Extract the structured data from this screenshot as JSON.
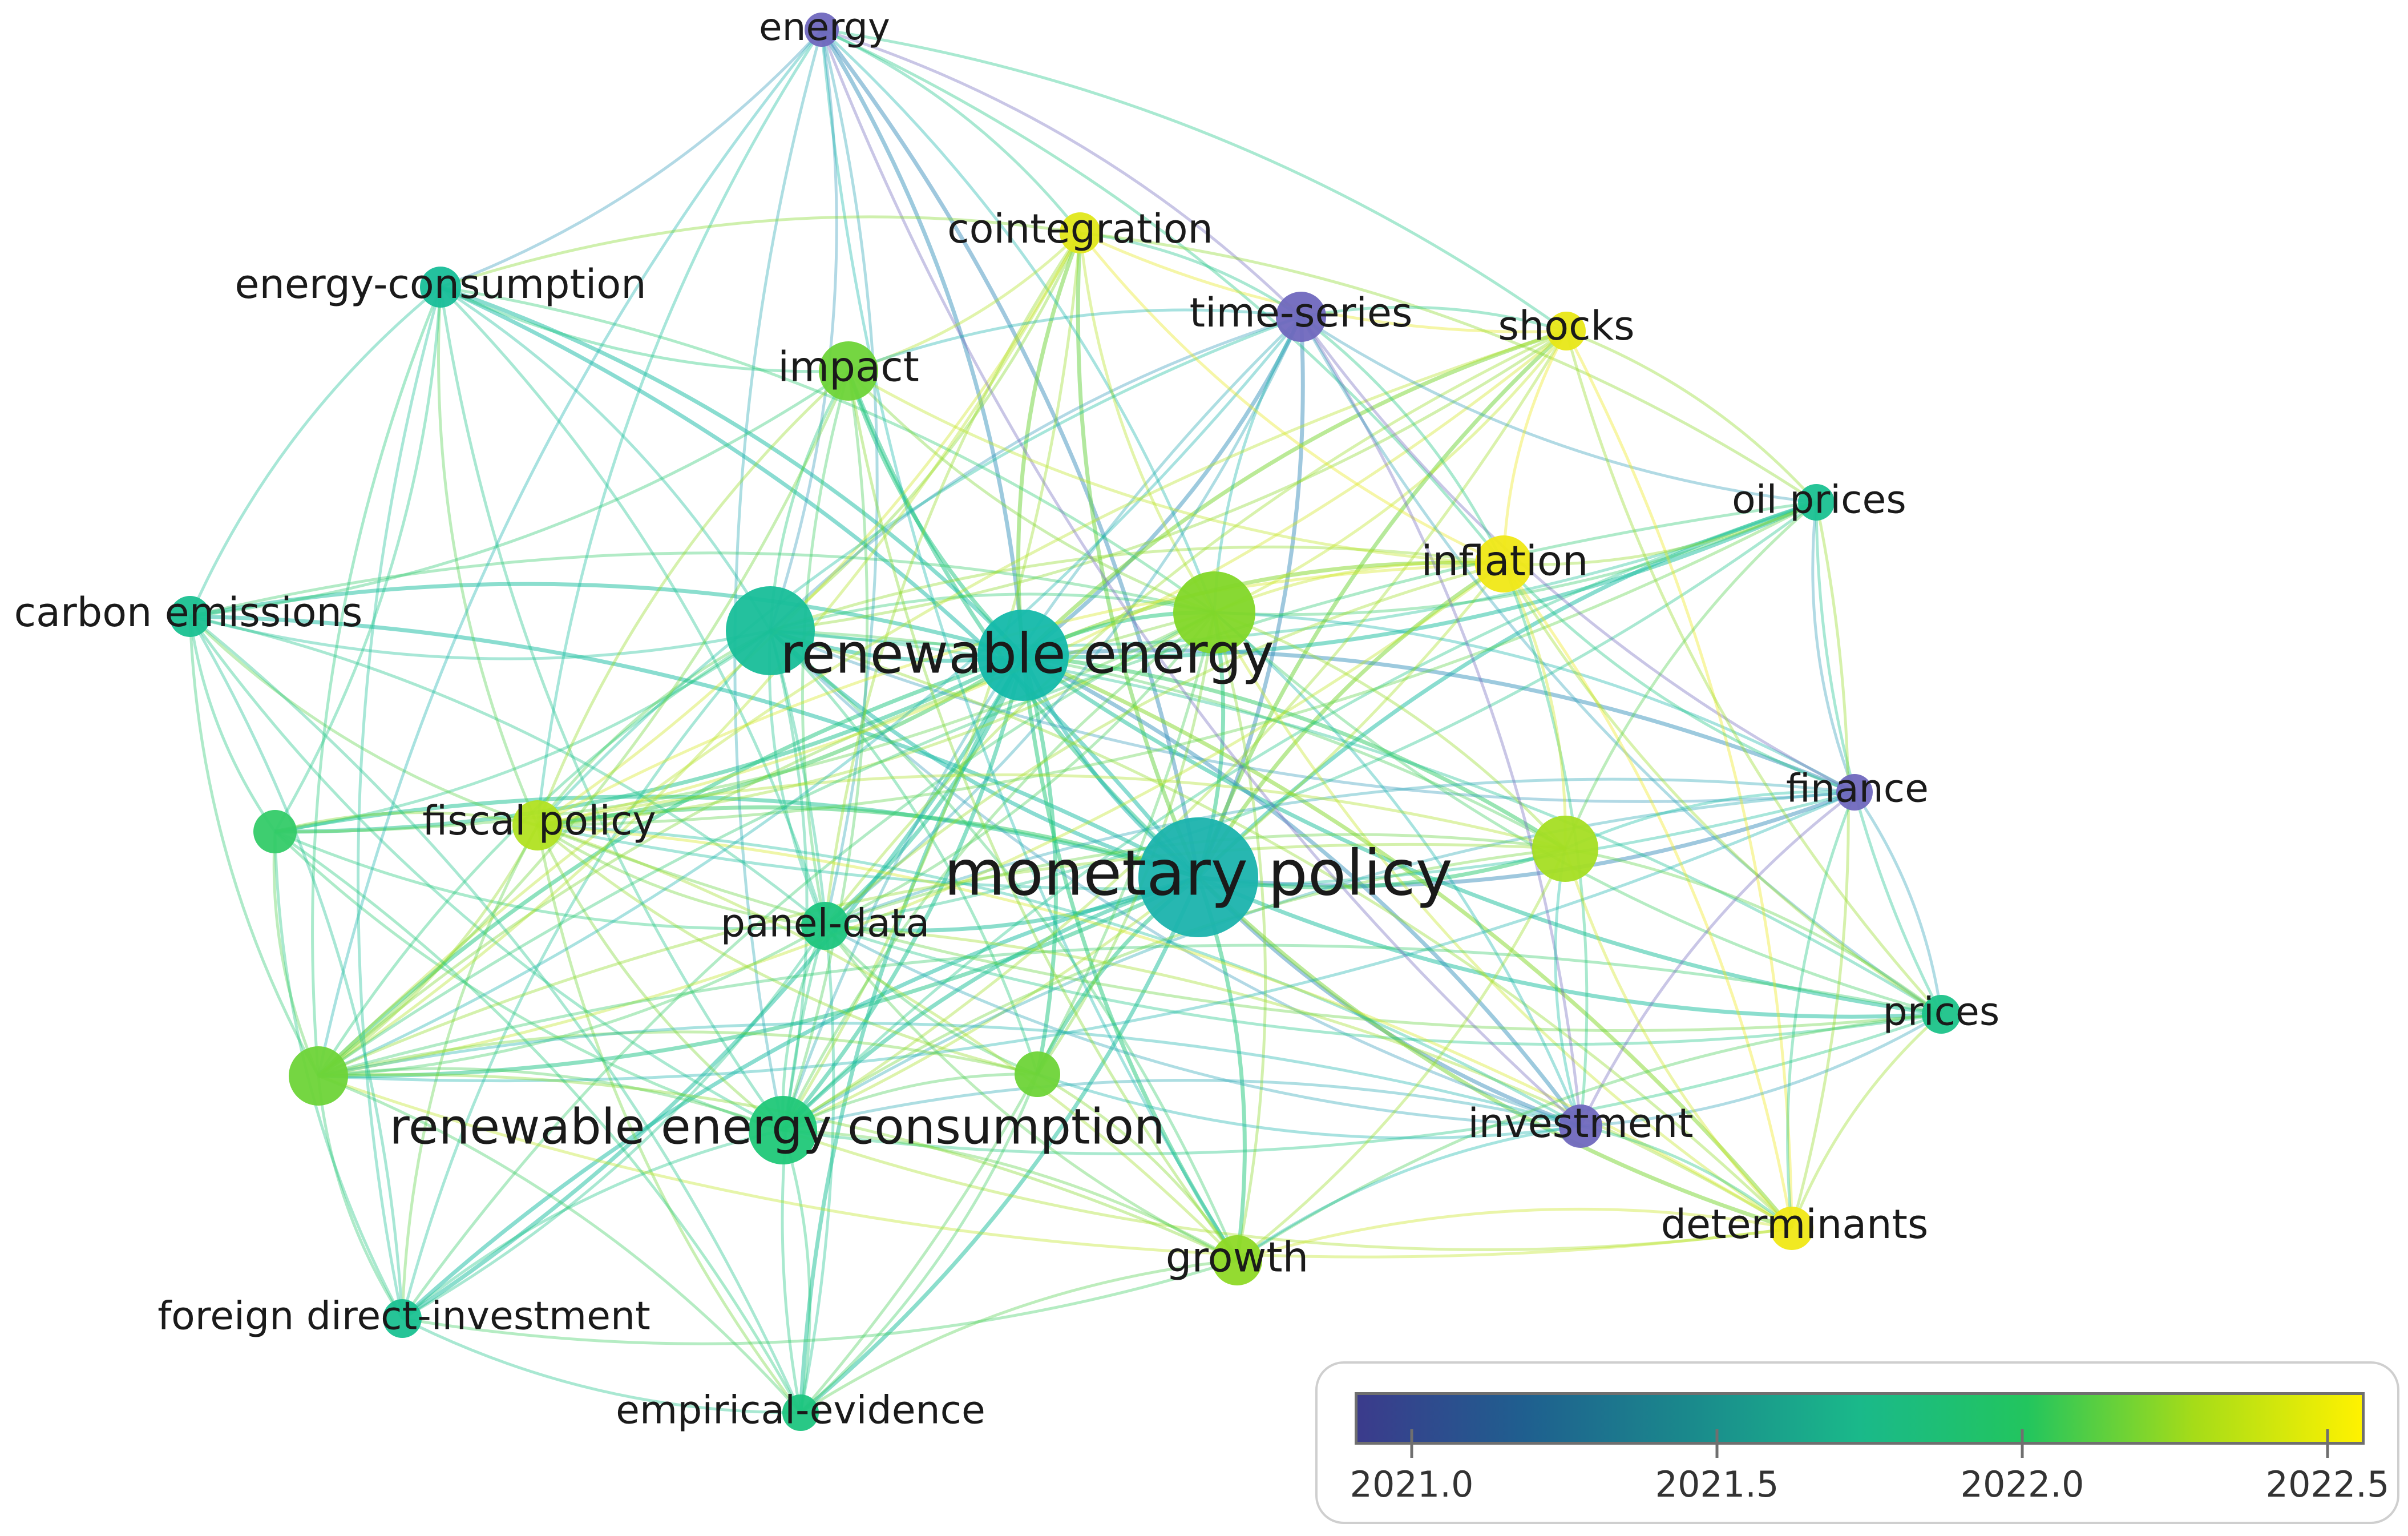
{
  "network": {
    "nodes": [
      {
        "id": "energy",
        "label": "energy",
        "year": 2021.0,
        "weight": 1
      },
      {
        "id": "cointegration",
        "label": "cointegration",
        "year": 2022.6,
        "weight": 1
      },
      {
        "id": "energy-consumption",
        "label": "energy-consumption",
        "year": 2021.7,
        "weight": 1
      },
      {
        "id": "time-series",
        "label": "time-series",
        "year": 2021.0,
        "weight": 1.1
      },
      {
        "id": "shocks",
        "label": "shocks",
        "year": 2022.65,
        "weight": 1
      },
      {
        "id": "impact",
        "label": "impact",
        "year": 2022.1,
        "weight": 1.4
      },
      {
        "id": "oil-prices",
        "label": "oil prices",
        "year": 2021.75,
        "weight": 0.9
      },
      {
        "id": "inflation",
        "label": "inflation",
        "year": 2022.7,
        "weight": 1.3
      },
      {
        "id": "carbon-emissions",
        "label": "carbon emissions",
        "year": 2021.75,
        "weight": 1
      },
      {
        "id": "economic-growth",
        "label": "",
        "year": 2021.7,
        "weight": 3.4
      },
      {
        "id": "renewable-energy",
        "label": "renewable energy",
        "year": 2021.6,
        "weight": 3.5
      },
      {
        "id": "unlabeled-green-top",
        "label": "",
        "year": 2022.15,
        "weight": 3.2
      },
      {
        "id": "finance",
        "label": "finance",
        "year": 2021.0,
        "weight": 1
      },
      {
        "id": "unlabeled-left",
        "label": "",
        "year": 2021.95,
        "weight": 1.2
      },
      {
        "id": "fiscal-policy",
        "label": "fiscal policy",
        "year": 2022.35,
        "weight": 1.3
      },
      {
        "id": "monetary-policy",
        "label": "monetary policy",
        "year": 2021.55,
        "weight": 5.5
      },
      {
        "id": "unlabeled-right",
        "label": "",
        "year": 2022.3,
        "weight": 2
      },
      {
        "id": "panel-data",
        "label": "panel-data",
        "year": 2021.85,
        "weight": 1.3
      },
      {
        "id": "prices",
        "label": "prices",
        "year": 2021.8,
        "weight": 1
      },
      {
        "id": "unlabeled-lower-left",
        "label": "",
        "year": 2022.1,
        "weight": 2.4
      },
      {
        "id": "unlabeled-lower-mid",
        "label": "",
        "year": 2022.1,
        "weight": 1.3
      },
      {
        "id": "investment",
        "label": "investment",
        "year": 2021.0,
        "weight": 1
      },
      {
        "id": "renewable-energy-consumption",
        "label": "renewable energy consumption",
        "year": 2021.9,
        "weight": 2.7
      },
      {
        "id": "determinants",
        "label": "determinants",
        "year": 2022.7,
        "weight": 1.2
      },
      {
        "id": "growth",
        "label": "growth",
        "year": 2022.2,
        "weight": 1.3
      },
      {
        "id": "foreign-direct-investment",
        "label": "foreign direct-investment",
        "year": 2021.75,
        "weight": 1
      },
      {
        "id": "empirical-evidence",
        "label": "empirical-evidence",
        "year": 2021.85,
        "weight": 1
      }
    ]
  },
  "legend": {
    "ticks": [
      "2021.0",
      "2021.5",
      "2022.0",
      "2022.5"
    ],
    "tick_values": [
      2021.0,
      2021.5,
      2022.0,
      2022.5
    ],
    "range": [
      2020.9,
      2022.75
    ],
    "colormap": "viridis"
  },
  "colors": {
    "viridis": [
      "#440154",
      "#482878",
      "#3e4989",
      "#31688e",
      "#26828e",
      "#1f9e89",
      "#35b779",
      "#6ece58",
      "#b5de2b",
      "#fde725"
    ],
    "legend_gradient": [
      "#3b3b8c",
      "#1f5f8f",
      "#1a8a8c",
      "#1ab98a",
      "#22c55e",
      "#a6dc18",
      "#fff200"
    ]
  }
}
